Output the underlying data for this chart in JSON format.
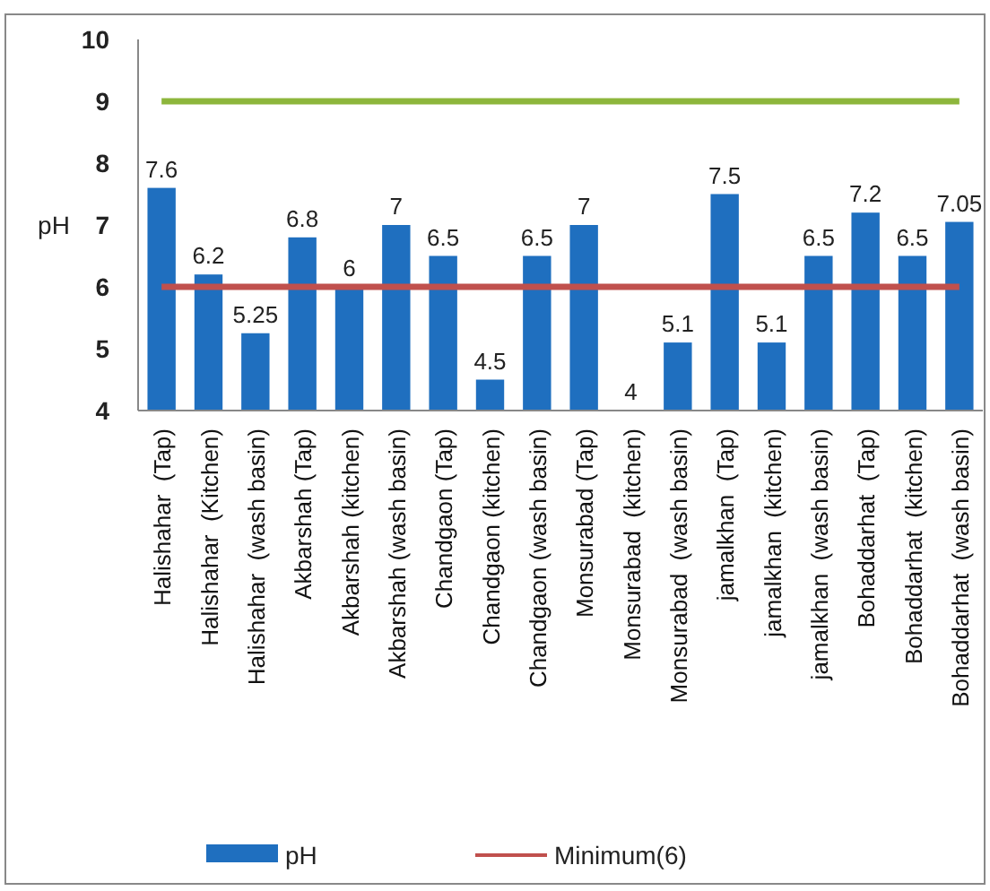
{
  "chart_data": {
    "type": "bar",
    "ylabel": "pH",
    "categories": [
      "Halishahar  (Tap)",
      "Halishahar  (Kitchen)",
      "Halishahar  (wash basin)",
      "Akbarshah (Tap)",
      "Akbarshah (kitchen)",
      "Akbarshah (wash basin)",
      "Chandgaon (Tap)",
      "Chandgaon (kitchen)",
      "Chandgaon (wash basin)",
      "Monsurabad (Tap)",
      "Monsurabad  (kitchen)",
      "Monsurabad  (wash basin)",
      "jamalkhan  (Tap)",
      "jamalkhan  (kitchen)",
      "jamalkhan  (wash basin)",
      "Bohaddarhat  (Tap)",
      "Bohaddarhat  (kitchen)",
      "Bohaddarhat  (wash basin)"
    ],
    "series": [
      {
        "name": "pH",
        "color": "#1f6fbf",
        "values": [
          7.6,
          6.2,
          5.25,
          6.8,
          6,
          7,
          6.5,
          4.5,
          6.5,
          7,
          4,
          5.1,
          7.5,
          5.1,
          6.5,
          7.2,
          6.5,
          7.05
        ],
        "value_labels": [
          "7.6",
          "6.2",
          "5.25",
          "6.8",
          "6",
          "7",
          "6.5",
          "4.5",
          "6.5",
          "7",
          "4",
          "5.1",
          "7.5",
          "5.1",
          "6.5",
          "7.2",
          "6.5",
          "7.05"
        ]
      },
      {
        "name": "Minimum(6)",
        "type": "line",
        "color": "#c0504d",
        "values": [
          6,
          6,
          6,
          6,
          6,
          6,
          6,
          6,
          6,
          6,
          6,
          6,
          6,
          6,
          6,
          6,
          6,
          6
        ]
      },
      {
        "type": "line",
        "color": "#8db63c",
        "values": [
          9,
          9,
          9,
          9,
          9,
          9,
          9,
          9,
          9,
          9,
          9,
          9,
          9,
          9,
          9,
          9,
          9,
          9
        ]
      }
    ],
    "ylim": [
      4,
      10
    ],
    "yticks": [
      4,
      5,
      6,
      7,
      8,
      9,
      10
    ],
    "grid": false,
    "legend": "bottom"
  }
}
